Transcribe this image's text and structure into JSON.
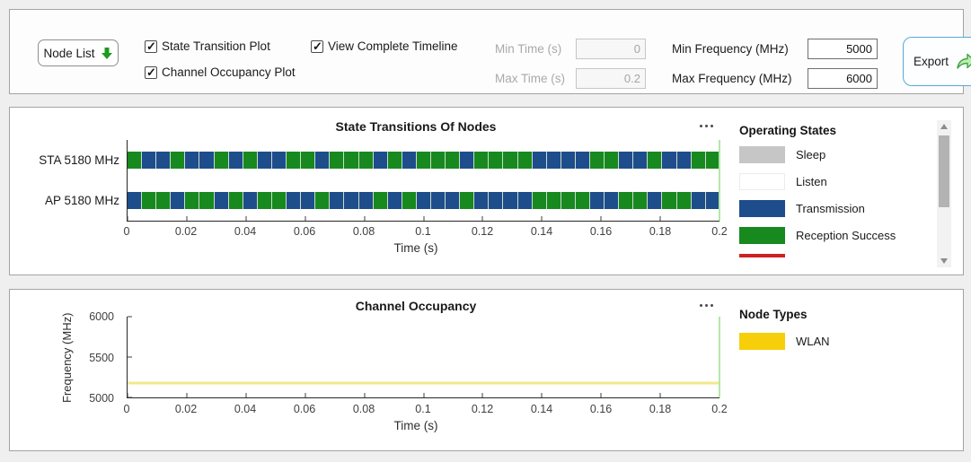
{
  "toolbar": {
    "node_list_label": "Node List",
    "checkboxes": [
      {
        "label": "State Transition Plot",
        "checked": true
      },
      {
        "label": "Channel Occupancy Plot",
        "checked": true
      },
      {
        "label": "View Complete Timeline",
        "checked": true
      }
    ],
    "fields": [
      {
        "label": "Min Time (s)",
        "value": "0",
        "disabled": true
      },
      {
        "label": "Max Time (s)",
        "value": "0.2",
        "disabled": true
      },
      {
        "label": "Min Frequency (MHz)",
        "value": "5000",
        "disabled": false
      },
      {
        "label": "Max Frequency (MHz)",
        "value": "6000",
        "disabled": false
      }
    ],
    "export_label": "Export",
    "icons": {
      "node_list": "down-arrow-icon",
      "export": "share-arrow-icon"
    }
  },
  "panel_icons": {
    "menu": "ellipsis-icon",
    "scroll_up": "triangle-up-icon",
    "scroll_down": "triangle-down-icon"
  },
  "colors": {
    "transmission": "#1e4d8c",
    "reception_success": "#17891f",
    "sleep": "#c6c6c6",
    "listen": "#ffffff",
    "reception_failure_sliver": "#cc2222",
    "wlan_legend": "#f6cf0a",
    "wlan_line": "#f2e88a",
    "timeline_end_marker": "#b4e7aa",
    "export_border": "#56a9d8",
    "node_list_arrow": "#1f9a1f"
  },
  "chart_data": [
    {
      "type": "heatmap",
      "subtype": "state-timeline",
      "title": "State Transitions Of Nodes",
      "xlabel": "Time (s)",
      "xlim": [
        0,
        0.2
      ],
      "x_ticks": [
        "0",
        "0.02",
        "0.04",
        "0.06",
        "0.08",
        "0.1",
        "0.12",
        "0.14",
        "0.16",
        "0.18",
        "0.2"
      ],
      "state_colors": {
        "T": "#1e4d8c",
        "R": "#17891f"
      },
      "state_names": {
        "T": "Transmission",
        "R": "Reception Success"
      },
      "rows": [
        {
          "label": "STA 5180 MHz",
          "segments": [
            "R",
            "T",
            "T",
            "R",
            "T",
            "T",
            "R",
            "T",
            "R",
            "T",
            "T",
            "R",
            "R",
            "T",
            "R",
            "R",
            "R",
            "T",
            "R",
            "T",
            "R",
            "R",
            "R",
            "T",
            "R",
            "R",
            "R",
            "R",
            "T",
            "T",
            "T",
            "T",
            "R",
            "R",
            "T",
            "T",
            "R",
            "T",
            "T",
            "R",
            "R"
          ]
        },
        {
          "label": "AP 5180 MHz",
          "segments": [
            "T",
            "R",
            "R",
            "T",
            "R",
            "R",
            "T",
            "R",
            "T",
            "R",
            "R",
            "T",
            "T",
            "R",
            "T",
            "T",
            "T",
            "R",
            "T",
            "R",
            "T",
            "T",
            "T",
            "R",
            "T",
            "T",
            "T",
            "T",
            "R",
            "R",
            "R",
            "R",
            "T",
            "T",
            "R",
            "R",
            "T",
            "R",
            "R",
            "T",
            "T"
          ]
        }
      ],
      "legend": {
        "title": "Operating States",
        "position": "right",
        "items": [
          {
            "label": "Sleep",
            "color": "#c6c6c6"
          },
          {
            "label": "Listen",
            "color": "#ffffff",
            "border": true
          },
          {
            "label": "Transmission",
            "color": "#1e4d8c"
          },
          {
            "label": "Reception Success",
            "color": "#17891f"
          },
          {
            "label": "",
            "color": "#cc2222",
            "partially_visible": true
          }
        ]
      }
    },
    {
      "type": "line",
      "title": "Channel Occupancy",
      "xlabel": "Time (s)",
      "ylabel": "Frequency (MHz)",
      "xlim": [
        0,
        0.2
      ],
      "ylim": [
        5000,
        6000
      ],
      "x_ticks": [
        "0",
        "0.02",
        "0.04",
        "0.06",
        "0.08",
        "0.1",
        "0.12",
        "0.14",
        "0.16",
        "0.18",
        "0.2"
      ],
      "y_ticks": [
        5000,
        5500,
        6000
      ],
      "series": [
        {
          "name": "WLAN",
          "y_mhz": 5180,
          "x_range": [
            0,
            0.2
          ],
          "color": "#f2e88a"
        }
      ],
      "legend": {
        "title": "Node Types",
        "position": "right",
        "items": [
          {
            "label": "WLAN",
            "color": "#f6cf0a"
          }
        ]
      }
    }
  ]
}
